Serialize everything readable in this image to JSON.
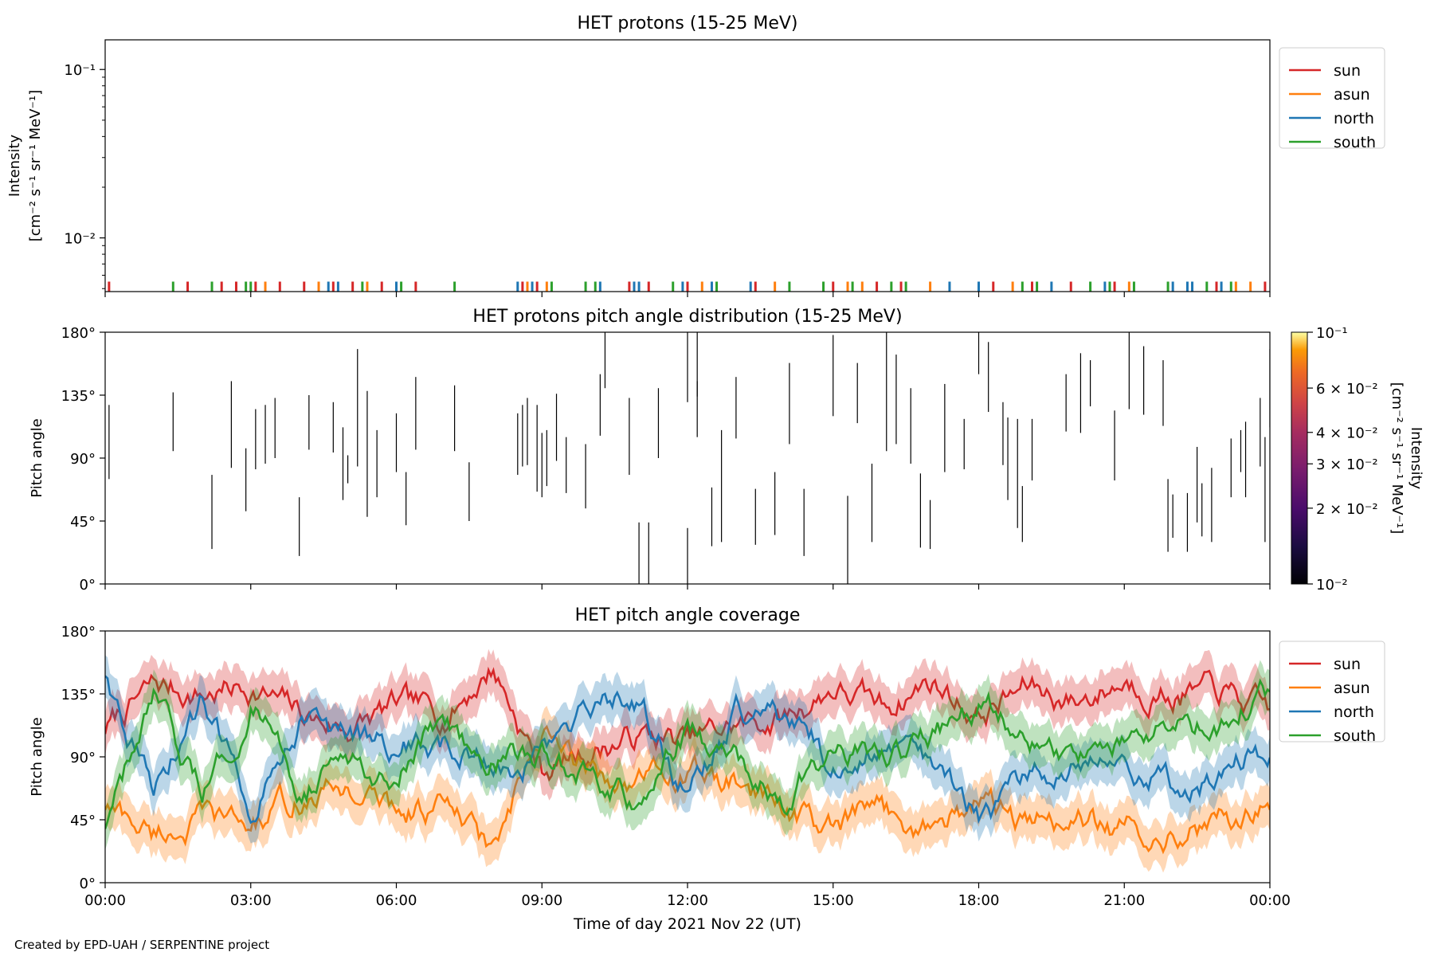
{
  "footer": "Created by EPD-UAH / SERPENTINE project",
  "colors": {
    "sun": "#d62728",
    "asun": "#ff7f0e",
    "north": "#1f77b4",
    "south": "#2ca02c"
  },
  "chart_data": [
    {
      "type": "line",
      "title": "HET protons (15-25 MeV)",
      "ylabel_lines": [
        "Intensity",
        "[cm⁻² s⁻¹ sr⁻¹ MeV⁻¹]"
      ],
      "yscale": "log",
      "ylim": [
        0.0048,
        0.15
      ],
      "ytick_labels": [
        "10⁻²",
        "10⁻¹"
      ],
      "legend": {
        "placement": "upper right outside",
        "entries": [
          "sun",
          "asun",
          "north",
          "south"
        ]
      },
      "series": [
        {
          "name": "sun",
          "color": "#d62728",
          "hours": [
            0.08,
            1.7,
            2.4,
            2.7,
            3.1,
            3.6,
            4.1,
            4.7,
            5.1,
            5.7,
            6.4,
            8.6,
            8.9,
            10.8,
            11.2,
            12.0,
            13.4,
            15.0,
            15.9,
            16.4,
            18.3,
            19.1,
            19.9,
            20.8,
            22.9,
            23.9
          ]
        },
        {
          "name": "asun",
          "color": "#ff7f0e",
          "hours": [
            3.3,
            4.4,
            5.4,
            8.7,
            9.1,
            12.3,
            13.8,
            15.3,
            15.6,
            17.0,
            18.7,
            21.1,
            23.3,
            23.6
          ]
        },
        {
          "name": "north",
          "color": "#1f77b4",
          "hours": [
            4.6,
            4.8,
            6.0,
            8.5,
            8.8,
            10.2,
            10.9,
            11.0,
            11.9,
            12.5,
            13.3,
            17.4,
            18.0,
            19.5,
            20.6,
            22.0,
            22.3,
            22.4,
            23.0
          ]
        },
        {
          "name": "south",
          "color": "#2ca02c",
          "hours": [
            1.4,
            2.2,
            2.9,
            3.0,
            5.3,
            6.1,
            7.2,
            9.2,
            9.9,
            10.1,
            11.7,
            12.6,
            14.1,
            14.8,
            15.4,
            16.2,
            16.5,
            18.9,
            19.2,
            20.3,
            20.7,
            21.2,
            21.9,
            22.7,
            23.2
          ]
        }
      ],
      "baseline": 0.0055
    },
    {
      "type": "heatmap",
      "title": "HET protons pitch angle distribution (15-25 MeV)",
      "ylabel": "Pitch angle",
      "ylim": [
        0,
        180
      ],
      "ytick_labels": [
        "0°",
        "45°",
        "90°",
        "135°",
        "180°"
      ],
      "colorbar": {
        "label_lines": [
          "Intensity",
          "[cm⁻² s⁻¹ sr⁻¹ MeV⁻¹]"
        ],
        "scale": "log",
        "range": [
          0.01,
          0.1
        ],
        "ticks": [
          0.01,
          0.02,
          0.03,
          0.04,
          0.06,
          0.1
        ],
        "tick_labels": [
          "10⁻²",
          "2 × 10⁻²",
          "3 × 10⁻²",
          "4 × 10⁻²",
          "6 × 10⁻²",
          "10⁻¹"
        ]
      },
      "segments": [
        [
          0.08,
          75,
          128
        ],
        [
          1.4,
          95,
          137
        ],
        [
          2.2,
          25,
          78
        ],
        [
          2.6,
          83,
          145
        ],
        [
          2.9,
          52,
          97
        ],
        [
          3.1,
          82,
          125
        ],
        [
          3.3,
          86,
          128
        ],
        [
          3.5,
          90,
          133
        ],
        [
          4.0,
          20,
          62
        ],
        [
          4.2,
          96,
          135
        ],
        [
          4.7,
          94,
          130
        ],
        [
          4.9,
          60,
          112
        ],
        [
          5.0,
          72,
          92
        ],
        [
          5.2,
          84,
          168
        ],
        [
          5.4,
          48,
          138
        ],
        [
          5.6,
          62,
          110
        ],
        [
          6.0,
          80,
          122
        ],
        [
          6.2,
          42,
          80
        ],
        [
          6.4,
          96,
          148
        ],
        [
          7.2,
          95,
          142
        ],
        [
          7.5,
          45,
          87
        ],
        [
          8.5,
          78,
          122
        ],
        [
          8.6,
          84,
          128
        ],
        [
          8.7,
          85,
          133
        ],
        [
          8.9,
          66,
          128
        ],
        [
          9.0,
          62,
          108
        ],
        [
          9.1,
          70,
          110
        ],
        [
          9.3,
          88,
          136
        ],
        [
          9.5,
          65,
          105
        ],
        [
          9.9,
          54,
          100
        ],
        [
          10.2,
          106,
          150
        ],
        [
          10.3,
          140,
          180
        ],
        [
          10.8,
          78,
          133
        ],
        [
          11.0,
          0,
          44
        ],
        [
          11.2,
          0,
          44
        ],
        [
          11.4,
          90,
          140
        ],
        [
          12.0,
          0,
          40
        ],
        [
          12.0,
          130,
          180
        ],
        [
          12.2,
          134,
          180
        ],
        [
          12.2,
          105,
          145
        ],
        [
          12.5,
          27,
          69
        ],
        [
          12.7,
          30,
          110
        ],
        [
          13.0,
          104,
          148
        ],
        [
          13.4,
          28,
          68
        ],
        [
          13.8,
          35,
          80
        ],
        [
          14.1,
          100,
          158
        ],
        [
          14.4,
          20,
          68
        ],
        [
          15.0,
          120,
          178
        ],
        [
          15.3,
          0,
          63
        ],
        [
          15.5,
          115,
          158
        ],
        [
          15.8,
          30,
          86
        ],
        [
          16.1,
          95,
          180
        ],
        [
          16.3,
          100,
          164
        ],
        [
          16.6,
          86,
          140
        ],
        [
          16.8,
          26,
          79
        ],
        [
          17.0,
          25,
          60
        ],
        [
          17.3,
          80,
          143
        ],
        [
          17.7,
          82,
          118
        ],
        [
          18.0,
          150,
          180
        ],
        [
          18.2,
          123,
          173
        ],
        [
          18.5,
          85,
          130
        ],
        [
          18.6,
          60,
          119
        ],
        [
          18.8,
          40,
          118
        ],
        [
          18.9,
          30,
          70
        ],
        [
          19.1,
          74,
          118
        ],
        [
          19.8,
          109,
          150
        ],
        [
          20.1,
          108,
          165
        ],
        [
          20.3,
          127,
          160
        ],
        [
          20.8,
          74,
          124
        ],
        [
          21.1,
          125,
          180
        ],
        [
          21.4,
          121,
          170
        ],
        [
          21.8,
          113,
          160
        ],
        [
          21.9,
          23,
          75
        ],
        [
          22.0,
          33,
          64
        ],
        [
          22.3,
          23,
          65
        ],
        [
          22.5,
          44,
          98
        ],
        [
          22.6,
          34,
          72
        ],
        [
          22.8,
          30,
          83
        ],
        [
          23.2,
          62,
          104
        ],
        [
          23.4,
          80,
          110
        ],
        [
          23.5,
          62,
          116
        ],
        [
          23.8,
          84,
          133
        ],
        [
          23.9,
          30,
          105
        ],
        [
          24.0,
          112,
          168
        ]
      ]
    },
    {
      "type": "area",
      "title": "HET pitch angle coverage",
      "xlabel": "Time of day 2021 Nov 22 (UT)",
      "ylabel": "Pitch angle",
      "ylim": [
        0,
        180
      ],
      "xlim_hours": [
        0,
        24
      ],
      "ytick_labels": [
        "0°",
        "45°",
        "90°",
        "135°",
        "180°"
      ],
      "xtick_labels": [
        "00:00",
        "03:00",
        "06:00",
        "09:00",
        "12:00",
        "15:00",
        "18:00",
        "21:00",
        "00:00"
      ],
      "legend": {
        "placement": "upper right outside",
        "entries": [
          "sun",
          "asun",
          "north",
          "south"
        ]
      },
      "band_halfwidth": 15,
      "hours": [
        0,
        1,
        2,
        3,
        4,
        5,
        6,
        7,
        8,
        9,
        10,
        11,
        12,
        13,
        14,
        15,
        16,
        17,
        18,
        19,
        20,
        21,
        22,
        23,
        24
      ],
      "series": [
        {
          "name": "sun",
          "color": "#d62728",
          "values": [
            110,
            140,
            135,
            140,
            120,
            110,
            125,
            120,
            155,
            80,
            95,
            105,
            100,
            112,
            118,
            140,
            125,
            145,
            120,
            140,
            130,
            145,
            135,
            135,
            120
          ]
        },
        {
          "name": "asun",
          "color": "#ff7f0e",
          "values": [
            55,
            35,
            45,
            40,
            60,
            68,
            52,
            55,
            20,
            100,
            80,
            72,
            78,
            68,
            55,
            35,
            52,
            40,
            58,
            40,
            45,
            35,
            40,
            42,
            55
          ]
        },
        {
          "name": "north",
          "color": "#1f77b4",
          "values": [
            150,
            60,
            130,
            60,
            120,
            100,
            100,
            95,
            85,
            90,
            120,
            130,
            60,
            120,
            115,
            85,
            100,
            85,
            45,
            70,
            95,
            90,
            70,
            80,
            95
          ]
        },
        {
          "name": "south",
          "color": "#2ca02c",
          "values": [
            40,
            125,
            60,
            130,
            70,
            85,
            80,
            115,
            90,
            90,
            70,
            55,
            110,
            85,
            60,
            100,
            90,
            100,
            125,
            110,
            90,
            100,
            110,
            115,
            140
          ]
        }
      ]
    }
  ]
}
